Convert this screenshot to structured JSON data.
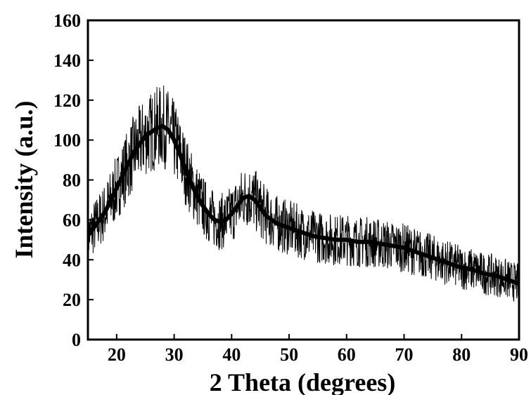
{
  "chart_data": {
    "type": "line",
    "title": "",
    "xlabel": "2 Theta (degrees)",
    "ylabel": "Intensity (a.u.)",
    "xlim": [
      15,
      90
    ],
    "ylim": [
      0,
      160
    ],
    "x_ticks": [
      "20",
      "30",
      "40",
      "50",
      "60",
      "70",
      "80",
      "90"
    ],
    "y_ticks": [
      "0",
      "20",
      "40",
      "60",
      "80",
      "100",
      "120",
      "140",
      "160"
    ],
    "grid": false,
    "legend": "none",
    "line_color": "#000000",
    "series": [
      {
        "x": [
          15,
          16,
          17,
          18,
          19,
          20,
          21,
          22,
          23,
          24,
          25,
          26,
          27,
          28,
          29,
          30,
          31,
          32,
          33,
          34,
          35,
          36,
          37,
          38,
          39,
          40,
          41,
          42,
          43,
          44,
          45,
          46,
          47,
          48,
          49,
          50,
          52,
          54,
          56,
          58,
          60,
          62,
          64,
          66,
          68,
          70,
          72,
          74,
          76,
          78,
          80,
          82,
          84,
          86,
          88,
          90
        ],
        "y": [
          52,
          56,
          60,
          64,
          70,
          76,
          82,
          88,
          94,
          98,
          102,
          104,
          106,
          107,
          105,
          100,
          93,
          85,
          78,
          72,
          67,
          63,
          60,
          59,
          60,
          63,
          67,
          71,
          72,
          70,
          66,
          62,
          60,
          58,
          57,
          56,
          54,
          52,
          51,
          50,
          50,
          49,
          49,
          48,
          47,
          46,
          44,
          42,
          40,
          38,
          36,
          35,
          33,
          32,
          30,
          28
        ]
      }
    ]
  }
}
